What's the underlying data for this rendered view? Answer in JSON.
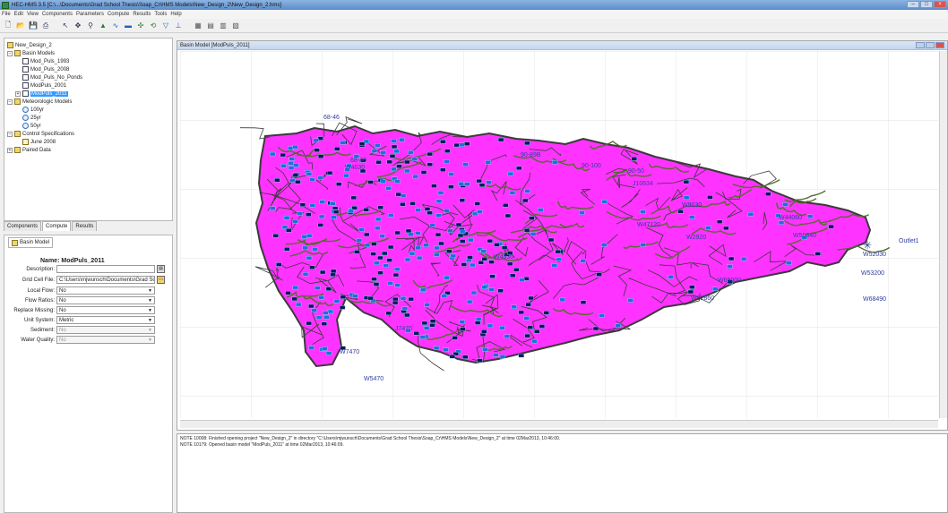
{
  "window": {
    "title": "HEC-HMS 3.5 [C:\\...\\Documents\\Grad School Thesis\\Soap_Cr\\HMS Models\\New_Design_2\\New_Design_2.hms]",
    "controls": [
      "–",
      "□",
      "×"
    ]
  },
  "menu": [
    "File",
    "Edit",
    "View",
    "Components",
    "Parameters",
    "Compute",
    "Results",
    "Tools",
    "Help"
  ],
  "toolbar_icons": [
    "new-icon",
    "open-icon",
    "save-icon",
    "print-icon",
    "arrow-icon",
    "pan-icon",
    "zoom-icon",
    "subbasin-icon",
    "reach-icon",
    "reservoir-icon",
    "junction-icon",
    "diversion-icon",
    "source-icon",
    "sink-icon",
    "compute-icon",
    "table-icon",
    "graph-icon",
    "summary-icon"
  ],
  "tree": {
    "root": "New_Design_2",
    "basin_models_label": "Basin Models",
    "basin_models": [
      "Mod_Puls_1993",
      "Mod_Puls_2008",
      "Mod_Puls_No_Ponds",
      "ModPuls_2001",
      "ModPuls_2011"
    ],
    "meteorologic_label": "Meteorologic Models",
    "meteorologic": [
      "100yr",
      "25yr",
      "50yr"
    ],
    "control_label": "Control Specifications",
    "control": [
      "June 2008"
    ],
    "paired_label": "Paired Data"
  },
  "left_tabs": [
    "Components",
    "Compute",
    "Results"
  ],
  "properties": {
    "tab": "Basin Model",
    "name_label": "Name:",
    "name_value": "ModPuls_2011",
    "fields": [
      {
        "label": "Description:",
        "value": "",
        "kind": "text-btn"
      },
      {
        "label": "Grid Cell File:",
        "value": "C:\\Users\\mjwunsch\\Documents\\Grad Sch",
        "kind": "text-btn"
      },
      {
        "label": "Local Flow:",
        "value": "No",
        "kind": "select"
      },
      {
        "label": "Flow Ratios:",
        "value": "No",
        "kind": "select"
      },
      {
        "label": "Replace Missing:",
        "value": "No",
        "kind": "select"
      },
      {
        "label": "Unit System:",
        "value": "Metric",
        "kind": "select"
      },
      {
        "label": "Sediment:",
        "value": "No",
        "kind": "select-disabled"
      },
      {
        "label": "Water Quality:",
        "value": "No",
        "kind": "select-disabled"
      }
    ]
  },
  "basin_window": {
    "title": "Basin Model [ModPuls_2011]"
  },
  "map_labels": [
    "68-46",
    "68-40",
    "W4030",
    "90-89B",
    "90-100",
    "90-50",
    "J10634",
    "W9030",
    "W44060",
    "W50640",
    "Outlet1",
    "W52030",
    "W53200",
    "W68490",
    "W4930",
    "W62860",
    "W66000",
    "W5470",
    "W7470",
    "J7470",
    "W2920",
    "W47120"
  ],
  "colors": {
    "basin_fill": "#ff33ff",
    "basin_stroke": "#3a3a3a",
    "reach": "#556b2f",
    "element": "#1e6fd9"
  },
  "log": [
    "NOTE 10008:  Finished opening project \"New_Design_2\" in directory \"C:\\Users\\mjwunsch\\Documents\\Grad School Thesis\\Soap_Cr\\HMS Models\\New_Design_2\" at time 02Mar2013, 10:46:00.",
    "NOTE 10179:  Opened basin model \"ModPuls_2011\" at time 02Mar2013, 10:46:09."
  ]
}
